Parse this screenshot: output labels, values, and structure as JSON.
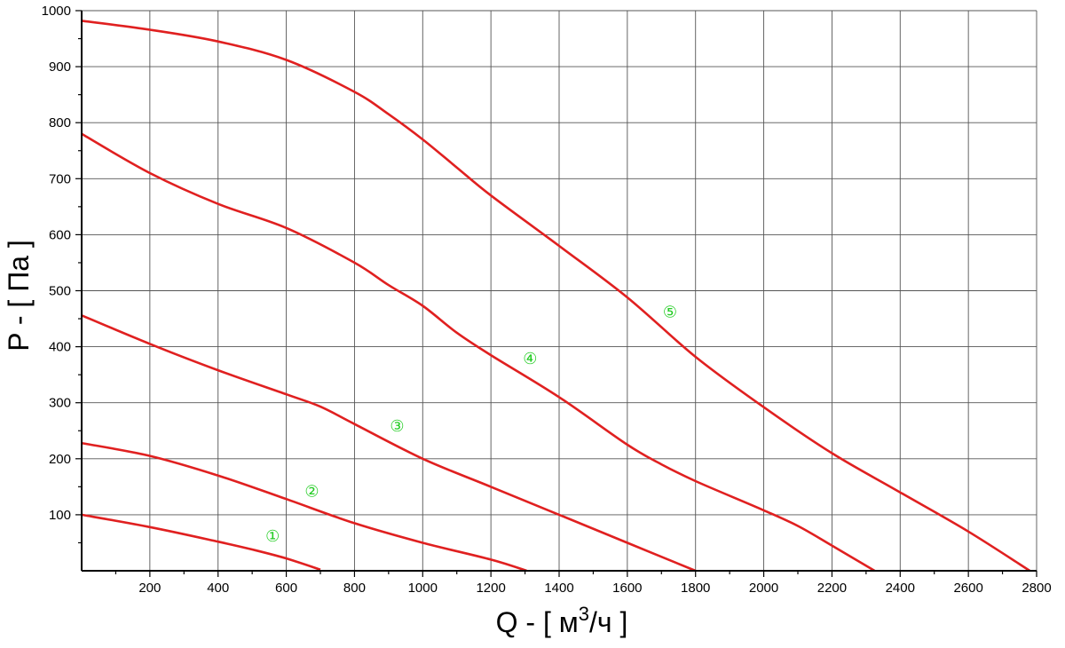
{
  "chart_data": {
    "type": "line",
    "title": "",
    "xlabel_main": "Q - [ м",
    "xlabel_sup": "3",
    "xlabel_tail": "/ч ]",
    "ylabel": "P - [ Па ]",
    "xlim": [
      0,
      2800
    ],
    "ylim": [
      0,
      1000
    ],
    "x_ticks": [
      200,
      400,
      600,
      800,
      1000,
      1200,
      1400,
      1600,
      1800,
      2000,
      2200,
      2400,
      2600,
      2800
    ],
    "y_ticks": [
      100,
      200,
      300,
      400,
      500,
      600,
      700,
      800,
      900,
      1000
    ],
    "grid": true,
    "line_color": "#e02020",
    "label_color": "#22cc22",
    "series": [
      {
        "name": "①",
        "label_at": [
          560,
          60
        ],
        "points": [
          [
            0,
            100
          ],
          [
            200,
            78
          ],
          [
            400,
            52
          ],
          [
            500,
            38
          ],
          [
            600,
            22
          ],
          [
            700,
            2
          ]
        ]
      },
      {
        "name": "②",
        "label_at": [
          675,
          140
        ],
        "points": [
          [
            0,
            228
          ],
          [
            200,
            205
          ],
          [
            400,
            170
          ],
          [
            600,
            128
          ],
          [
            800,
            85
          ],
          [
            1000,
            50
          ],
          [
            1200,
            20
          ],
          [
            1305,
            0
          ]
        ]
      },
      {
        "name": "③",
        "label_at": [
          925,
          257
        ],
        "points": [
          [
            0,
            456
          ],
          [
            200,
            405
          ],
          [
            400,
            358
          ],
          [
            600,
            315
          ],
          [
            700,
            293
          ],
          [
            800,
            262
          ],
          [
            1000,
            200
          ],
          [
            1200,
            150
          ],
          [
            1400,
            100
          ],
          [
            1600,
            50
          ],
          [
            1800,
            0
          ]
        ]
      },
      {
        "name": "④",
        "label_at": [
          1315,
          377
        ],
        "points": [
          [
            0,
            780
          ],
          [
            200,
            710
          ],
          [
            400,
            655
          ],
          [
            600,
            612
          ],
          [
            800,
            550
          ],
          [
            900,
            510
          ],
          [
            1000,
            473
          ],
          [
            1100,
            425
          ],
          [
            1200,
            385
          ],
          [
            1400,
            310
          ],
          [
            1600,
            225
          ],
          [
            1700,
            190
          ],
          [
            1800,
            160
          ],
          [
            2000,
            108
          ],
          [
            2100,
            80
          ],
          [
            2200,
            45
          ],
          [
            2325,
            0
          ]
        ]
      },
      {
        "name": "⑤",
        "label_at": [
          1725,
          460
        ],
        "points": [
          [
            0,
            982
          ],
          [
            200,
            966
          ],
          [
            400,
            945
          ],
          [
            600,
            912
          ],
          [
            800,
            855
          ],
          [
            900,
            815
          ],
          [
            1000,
            770
          ],
          [
            1100,
            720
          ],
          [
            1200,
            670
          ],
          [
            1400,
            580
          ],
          [
            1600,
            488
          ],
          [
            1800,
            382
          ],
          [
            2000,
            292
          ],
          [
            2200,
            210
          ],
          [
            2400,
            140
          ],
          [
            2600,
            70
          ],
          [
            2780,
            0
          ]
        ]
      }
    ]
  }
}
